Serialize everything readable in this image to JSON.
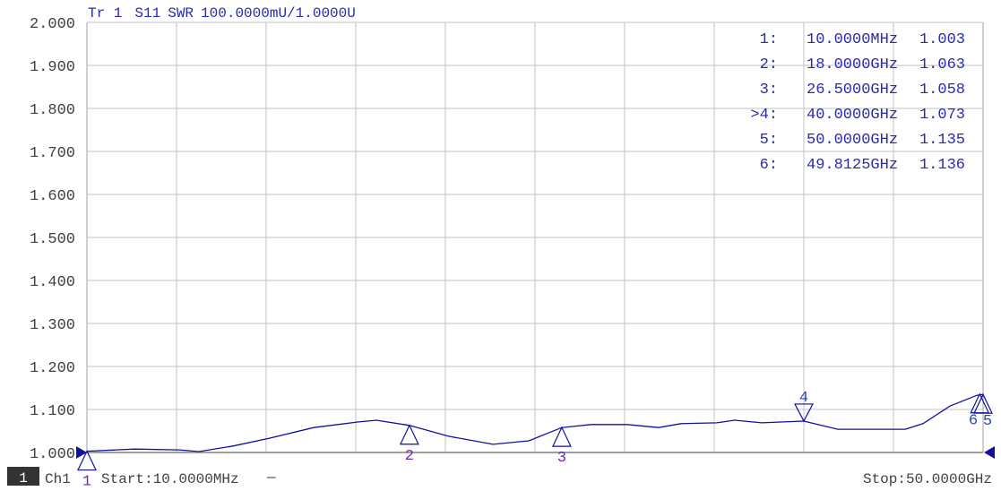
{
  "header": {
    "trace": "Tr 1",
    "param": "S11",
    "format": "SWR",
    "scale": "100.0000mU/1.0000U"
  },
  "footer": {
    "channel_num": "1",
    "channel": "Ch1",
    "start": "Start:10.0000MHz",
    "start_suffix": "—",
    "stop": "Stop:50.0000GHz"
  },
  "colors": {
    "trace": "#1010a0",
    "grid": "#c0c0c0",
    "text": "#2a2ab0",
    "marker_label": "#6a2ab0",
    "axis_text": "#404040"
  },
  "marker_table": [
    {
      "id": "1",
      "active": false,
      "label": "1:",
      "freq": "10.0000MHz",
      "value": "1.003"
    },
    {
      "id": "2",
      "active": false,
      "label": "2:",
      "freq": "18.0000GHz",
      "value": "1.063"
    },
    {
      "id": "3",
      "active": false,
      "label": "3:",
      "freq": "26.5000GHz",
      "value": "1.058"
    },
    {
      "id": "4",
      "active": true,
      "label": ">4:",
      "freq": "40.0000GHz",
      "value": "1.073"
    },
    {
      "id": "5",
      "active": false,
      "label": "5:",
      "freq": "50.0000GHz",
      "value": "1.135"
    },
    {
      "id": "6",
      "active": false,
      "label": "6:",
      "freq": "49.8125GHz",
      "value": "1.136"
    }
  ],
  "chart_data": {
    "type": "line",
    "title": "",
    "xlabel": "",
    "ylabel": "",
    "x_unit": "GHz",
    "xlim": [
      0.01,
      50
    ],
    "ylim": [
      1.0,
      2.0
    ],
    "y_ticks": [
      "2.000",
      "1.900",
      "1.800",
      "1.700",
      "1.600",
      "1.500",
      "1.400",
      "1.300",
      "1.200",
      "1.100",
      "1.000"
    ],
    "grid": true,
    "x_divisions": 10,
    "series": [
      {
        "x": [
          0.01,
          2.66,
          5.16,
          6.26,
          8.16,
          10.16,
          12.66,
          15.16,
          16.16,
          18.0,
          20.16,
          22.66,
          24.66,
          26.5,
          28.15,
          30.15,
          31.9,
          33.15,
          35.15,
          36.15,
          37.65,
          40.0,
          41.9,
          44.15,
          45.65,
          46.65,
          48.15,
          49.66,
          50.0
        ],
        "y": [
          1.003,
          1.008,
          1.006,
          1.002,
          1.015,
          1.033,
          1.058,
          1.071,
          1.075,
          1.063,
          1.038,
          1.019,
          1.027,
          1.058,
          1.065,
          1.065,
          1.058,
          1.067,
          1.069,
          1.075,
          1.069,
          1.073,
          1.054,
          1.054,
          1.054,
          1.067,
          1.108,
          1.133,
          1.135
        ]
      }
    ],
    "markers": [
      {
        "id": "1",
        "x": 0.01,
        "y": 1.003,
        "dir": "up"
      },
      {
        "id": "2",
        "x": 18.0,
        "y": 1.063,
        "dir": "up"
      },
      {
        "id": "3",
        "x": 26.5,
        "y": 1.058,
        "dir": "up"
      },
      {
        "id": "4",
        "x": 40.0,
        "y": 1.073,
        "dir": "down"
      },
      {
        "id": "5",
        "x": 50.0,
        "y": 1.135,
        "dir": "up"
      },
      {
        "id": "6",
        "x": 49.8125,
        "y": 1.136,
        "dir": "up"
      }
    ]
  }
}
